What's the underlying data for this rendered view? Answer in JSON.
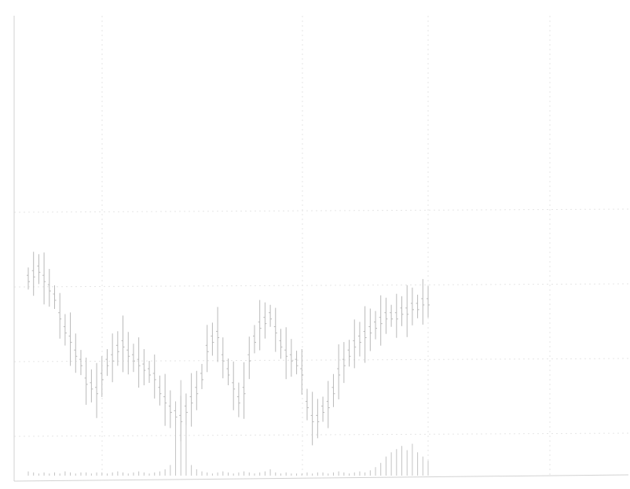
{
  "chart_data": [
    {
      "type": "line",
      "subtype": "ohlc-bar",
      "title": "",
      "xlabel": "",
      "ylabel": "",
      "grid": true,
      "legend": "none",
      "colors": {
        "bars": "#b9b9b9",
        "grid": "#e6e6e6",
        "axis": "#d2d2d2"
      },
      "ylim": [
        0,
        100
      ],
      "series": [
        {
          "values": [
            70,
            71,
            72,
            70,
            68,
            66,
            62,
            59,
            57,
            54,
            52,
            48,
            47,
            46,
            49,
            52,
            53,
            55,
            56,
            54,
            53,
            52,
            51,
            50,
            49,
            46,
            44,
            42,
            41,
            40,
            42,
            44,
            46,
            49,
            55,
            57,
            58,
            53,
            50,
            47,
            44,
            46,
            53,
            57,
            60,
            61,
            62,
            59,
            56,
            54,
            53,
            52,
            50,
            43,
            40,
            40,
            42,
            43,
            46,
            50,
            52,
            54,
            56,
            57,
            58,
            59,
            60,
            61,
            62,
            62,
            62,
            63,
            63,
            64,
            64,
            65,
            65
          ]
        }
      ]
    },
    {
      "type": "bar",
      "title": "",
      "xlabel": "",
      "ylabel": "",
      "ylim": [
        0,
        100
      ],
      "values": [
        4,
        3,
        2,
        3,
        2,
        3,
        2,
        4,
        3,
        2,
        3,
        3,
        2,
        3,
        3,
        2,
        3,
        4,
        3,
        2,
        3,
        4,
        3,
        2,
        3,
        4,
        6,
        10,
        70,
        90,
        60,
        10,
        6,
        4,
        3,
        2,
        3,
        4,
        3,
        2,
        3,
        4,
        3,
        2,
        3,
        4,
        6,
        3,
        2,
        3,
        2,
        2,
        2,
        3,
        2,
        3,
        3,
        2,
        3,
        4,
        3,
        2,
        3,
        4,
        3,
        5,
        8,
        12,
        18,
        22,
        25,
        28,
        24,
        30,
        22,
        18,
        14
      ]
    }
  ]
}
